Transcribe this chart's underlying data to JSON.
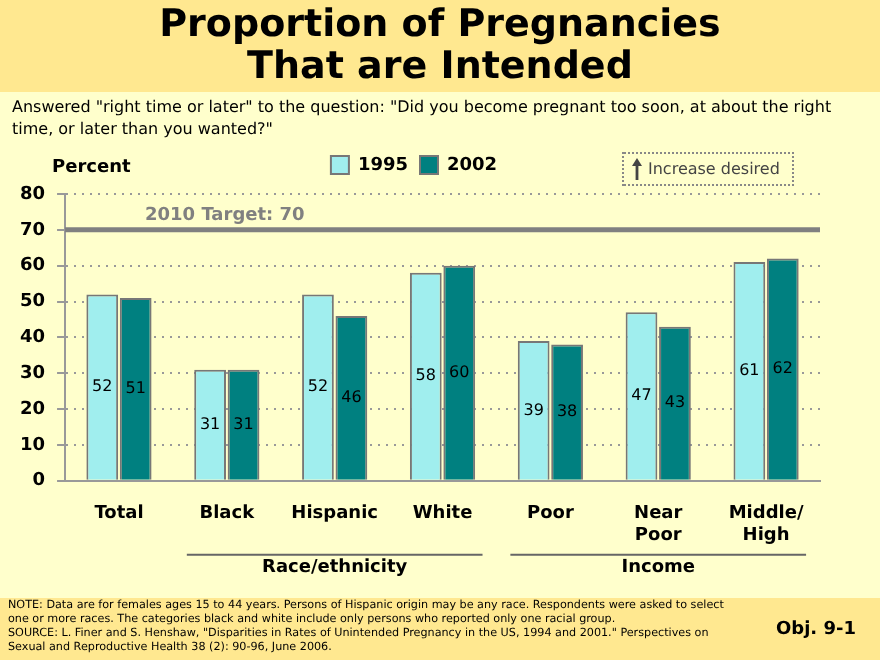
{
  "chart_data": {
    "type": "bar",
    "title": "Proportion of Pregnancies That are Intended",
    "subtitle": "Answered \"right time or later\" to the question: \"Did you become pregnant too soon, at about the right time, or later than you wanted?\"",
    "ylabel": "Percent",
    "categories": [
      "Total",
      "Black",
      "Hispanic",
      "White",
      "Poor",
      "Near Poor",
      "Middle/High"
    ],
    "series": [
      {
        "name": "1995",
        "color": "#a0eeee",
        "values": [
          52,
          31,
          52,
          58,
          39,
          47,
          61
        ]
      },
      {
        "name": "2002",
        "color": "#008080",
        "values": [
          51,
          31,
          46,
          60,
          38,
          43,
          62
        ]
      }
    ],
    "ylim": [
      0,
      80
    ],
    "yticks": [
      0,
      10,
      20,
      30,
      40,
      50,
      60,
      70,
      80
    ],
    "grid": "y",
    "legend": "top",
    "data_labels": true,
    "ref_lines": [
      {
        "axis": "y",
        "value": 70,
        "label": "2010 Target: 70",
        "color": "#808080"
      }
    ],
    "annotations": [
      "Race/ethnicity",
      "Income",
      "Increase desired",
      "NOTE:  Data are for females ages 15 to 44 years. Persons of Hispanic origin may be any race. Respondents were asked to select one or more races. The categories black and white include only persons who reported only one racial group.",
      "SOURCE:  L. Finer and S. Henshaw, \"Disparities in Rates of Unintended Pregnancy in the US, 1994 and 2001.\"  Perspectives on Sexual and Reproductive Health 38 (2): 90-96, June 2006.",
      "Obj. 9-1"
    ]
  }
}
